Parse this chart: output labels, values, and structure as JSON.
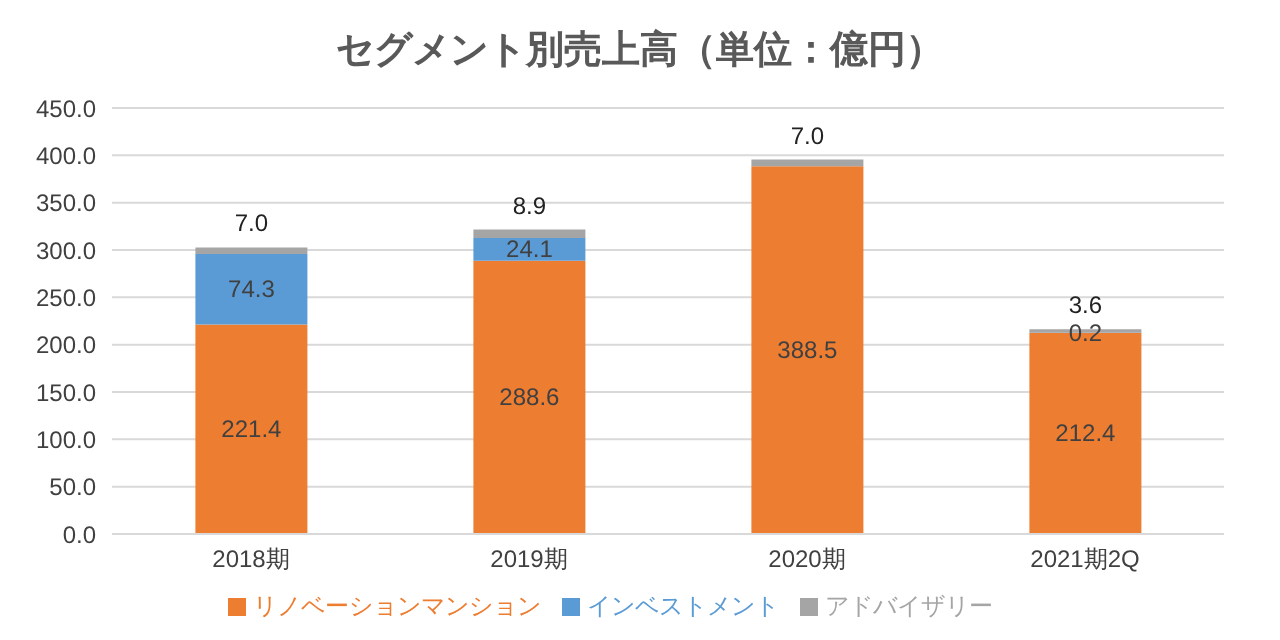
{
  "chart_data": {
    "type": "bar",
    "title": "セグメント別売上高（単位：億円）",
    "categories": [
      "2018期",
      "2019期",
      "2020期",
      "2021期2Q"
    ],
    "stacked": true,
    "series": [
      {
        "name": "リノベーションマンション",
        "color": "#ed7d31",
        "values": [
          221.4,
          288.6,
          388.5,
          212.4
        ],
        "value_labels": [
          "221.4",
          "288.6",
          "388.5",
          "212.4"
        ]
      },
      {
        "name": "インベストメント",
        "color": "#5b9bd5",
        "values": [
          74.3,
          24.1,
          null,
          0.2
        ],
        "value_labels": [
          "74.3",
          "24.1",
          null,
          "0.2"
        ]
      },
      {
        "name": "アドバイザリー",
        "color": "#a5a5a5",
        "values": [
          7.0,
          8.9,
          7.0,
          3.6
        ],
        "value_labels": [
          "7.0",
          "8.9",
          "7.0",
          "3.6"
        ]
      }
    ],
    "ylim": [
      0,
      450
    ],
    "yticks": [
      {
        "value": 0,
        "label": "0.0"
      },
      {
        "value": 50,
        "label": "50.0"
      },
      {
        "value": 100,
        "label": "100.0"
      },
      {
        "value": 150,
        "label": "150.0"
      },
      {
        "value": 200,
        "label": "200.0"
      },
      {
        "value": 250,
        "label": "250.0"
      },
      {
        "value": 300,
        "label": "300.0"
      },
      {
        "value": 350,
        "label": "350.0"
      },
      {
        "value": 400,
        "label": "400.0"
      },
      {
        "value": 450,
        "label": "450.0"
      }
    ],
    "grid": "y",
    "legend": "bottom"
  }
}
